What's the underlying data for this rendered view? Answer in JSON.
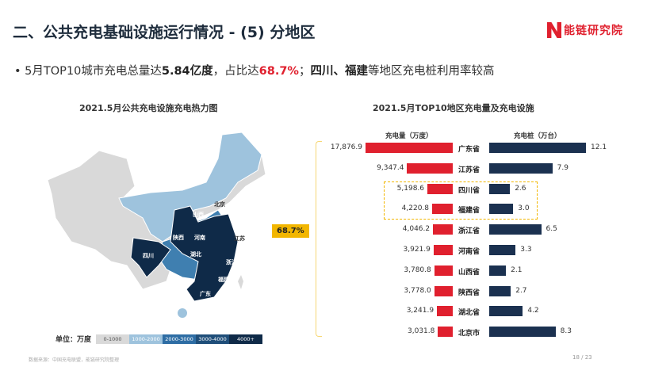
{
  "header": {
    "title": "二、公共充电基础设施运行情况 - (5) 分地区",
    "logo_text": "能链研究院"
  },
  "bullet": {
    "p1": "5月TOP10城市充电总量达",
    "p2": "5.84亿度",
    "p3": "，占比达",
    "p4": "68.7%",
    "p5": "；",
    "p6": "四川、福建",
    "p7": "等地区充电桩利用率较高"
  },
  "map": {
    "title": "2021.5月公共充电设施充电热力图",
    "labels": [
      "北京",
      "山西",
      "陕西",
      "河南",
      "江苏",
      "四川",
      "湖北",
      "浙江",
      "福建",
      "广东"
    ],
    "legend": {
      "unit": "单位：万度",
      "bins": [
        {
          "label": "0-1000",
          "color": "#d9d9d9"
        },
        {
          "label": "1000-2000",
          "color": "#9ec3dd"
        },
        {
          "label": "2000-3000",
          "color": "#3f7fb0"
        },
        {
          "label": "3000-4000",
          "color": "#1f4e79"
        },
        {
          "label": "4000+",
          "color": "#0f2a48"
        }
      ]
    }
  },
  "chart_data": {
    "type": "bar",
    "title": "2021.5月TOP10地区充电量及充电设施",
    "categories": [
      "广东省",
      "江苏省",
      "四川省",
      "福建省",
      "浙江省",
      "河南省",
      "山西省",
      "陕西省",
      "湖北省",
      "北京市"
    ],
    "series": [
      {
        "name": "充电量（万度）",
        "color": "#e0202e",
        "values": [
          17876.9,
          9347.4,
          5198.6,
          4220.8,
          4046.2,
          3921.9,
          3780.8,
          3778.0,
          3241.9,
          3031.8
        ],
        "labels": [
          "17,876.9",
          "9,347.4",
          "5,198.6",
          "4,220.8",
          "4,046.2",
          "3,921.9",
          "3,780.8",
          "3,778.0",
          "3,241.9",
          "3,031.8"
        ]
      },
      {
        "name": "充电桩（万台）",
        "color": "#1b3150",
        "values": [
          12.1,
          7.9,
          2.6,
          3.0,
          6.5,
          3.3,
          2.1,
          2.7,
          4.2,
          8.3
        ],
        "labels": [
          "12.1",
          "7.9",
          "2.6",
          "3.0",
          "6.5",
          "3.3",
          "2.1",
          "2.7",
          "4.2",
          "8.3"
        ]
      }
    ],
    "highlight": [
      "四川省",
      "福建省"
    ],
    "share_badge": "68.7%"
  },
  "footer": {
    "source": "数据来源：中国充电联盟，能链研究院整理",
    "page": "18 / 23"
  }
}
